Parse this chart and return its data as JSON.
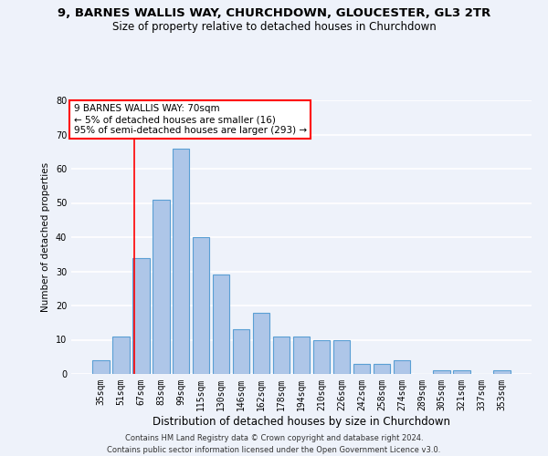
{
  "title_line1": "9, BARNES WALLIS WAY, CHURCHDOWN, GLOUCESTER, GL3 2TR",
  "title_line2": "Size of property relative to detached houses in Churchdown",
  "xlabel": "Distribution of detached houses by size in Churchdown",
  "ylabel": "Number of detached properties",
  "categories": [
    "35sqm",
    "51sqm",
    "67sqm",
    "83sqm",
    "99sqm",
    "115sqm",
    "130sqm",
    "146sqm",
    "162sqm",
    "178sqm",
    "194sqm",
    "210sqm",
    "226sqm",
    "242sqm",
    "258sqm",
    "274sqm",
    "289sqm",
    "305sqm",
    "321sqm",
    "337sqm",
    "353sqm"
  ],
  "values": [
    4,
    11,
    34,
    51,
    66,
    40,
    29,
    13,
    18,
    11,
    11,
    10,
    10,
    3,
    3,
    4,
    0,
    1,
    1,
    0,
    1
  ],
  "bar_color": "#aec6e8",
  "bar_edge_color": "#5a9fd4",
  "annotation_text": "9 BARNES WALLIS WAY: 70sqm\n← 5% of detached houses are smaller (16)\n95% of semi-detached houses are larger (293) →",
  "annotation_box_color": "white",
  "annotation_box_edge_color": "red",
  "red_line_color": "red",
  "ylim": [
    0,
    80
  ],
  "yticks": [
    0,
    10,
    20,
    30,
    40,
    50,
    60,
    70,
    80
  ],
  "footer_line1": "Contains HM Land Registry data © Crown copyright and database right 2024.",
  "footer_line2": "Contains public sector information licensed under the Open Government Licence v3.0.",
  "background_color": "#eef2fa",
  "grid_color": "white"
}
